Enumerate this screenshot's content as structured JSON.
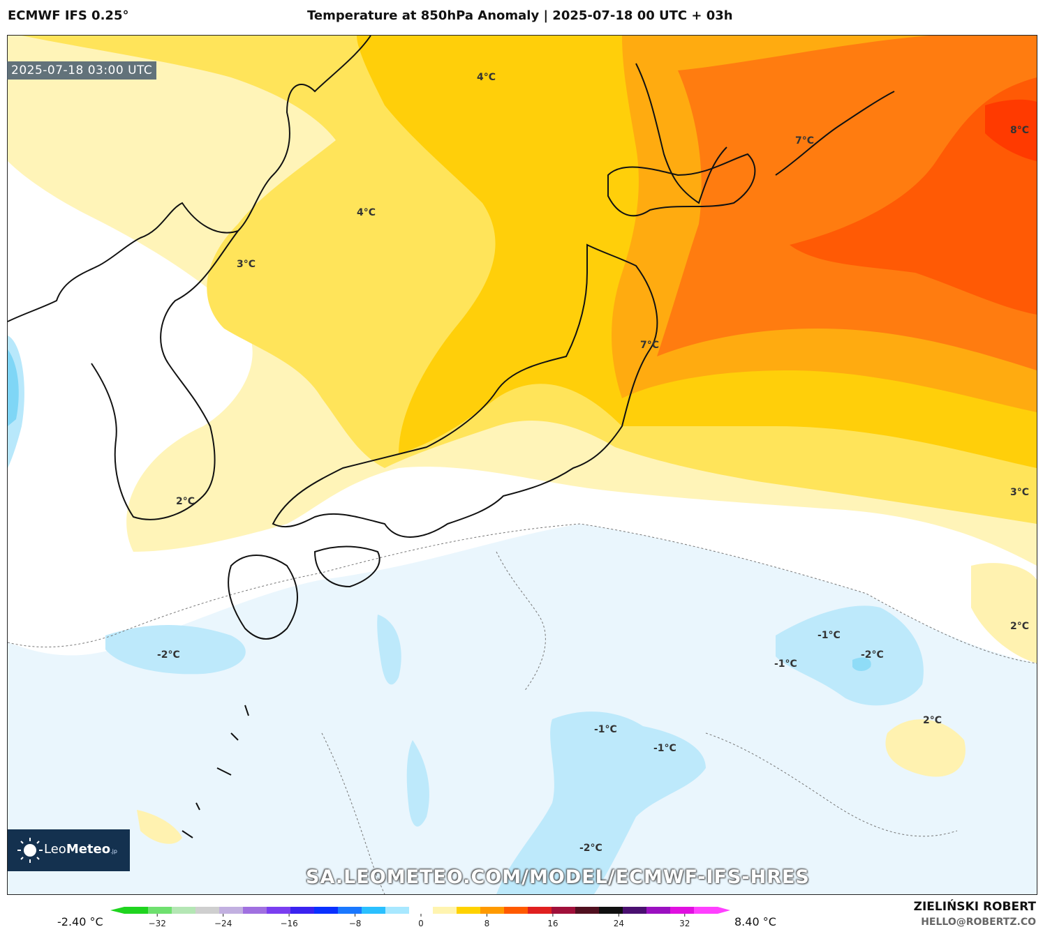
{
  "header": {
    "model": "ECMWF IFS 0.25°",
    "title": "Temperature at 850hPa Anomaly | 2025-07-18 00 UTC + 03h"
  },
  "timestamp": "2025-07-18 03:00 UTC",
  "watermark_url": "SA.LEOMETEO.COM/MODEL/ECMWF-IFS-HRES",
  "logo": {
    "brand_light": "Leo",
    "brand_bold": "Meteo",
    "suffix": ".jp"
  },
  "contour_labels": [
    "4°C",
    "4°C",
    "3°C",
    "7°C",
    "8°C",
    "7°C",
    "2°C",
    "3°C",
    "2°C",
    "-2°C",
    "-1°C",
    "-1°C",
    "-2°C",
    "2°C",
    "-1°C",
    "-1°C",
    "-2°C"
  ],
  "colorbar": {
    "min_label": "-2.40 °C",
    "max_label": "8.40 °C",
    "ticks": [
      "−32",
      "−24",
      "−16",
      "−8",
      "0",
      "8",
      "16",
      "24",
      "32"
    ],
    "tick_values": [
      -32,
      -24,
      -16,
      -8,
      0,
      8,
      16,
      24,
      32
    ],
    "range": [
      -36,
      36
    ],
    "colors": [
      "#1fd41f",
      "#6fe06f",
      "#b4e6b4",
      "#cfcfcf",
      "#c2b0e0",
      "#a070e0",
      "#7a3ef0",
      "#3a22f0",
      "#0a30ff",
      "#1a78ff",
      "#2ac0ff",
      "#a8e8ff",
      "#ffffff",
      "#fff4b0",
      "#ffd200",
      "#ff9a00",
      "#ff5a00",
      "#e02020",
      "#a0103a",
      "#501020",
      "#101010",
      "#4a1070",
      "#9a10c0",
      "#e010e0",
      "#ff40ff"
    ]
  },
  "author": "ZIELIŃSKI ROBERT",
  "email": "HELLO@ROBERTZ.CO"
}
